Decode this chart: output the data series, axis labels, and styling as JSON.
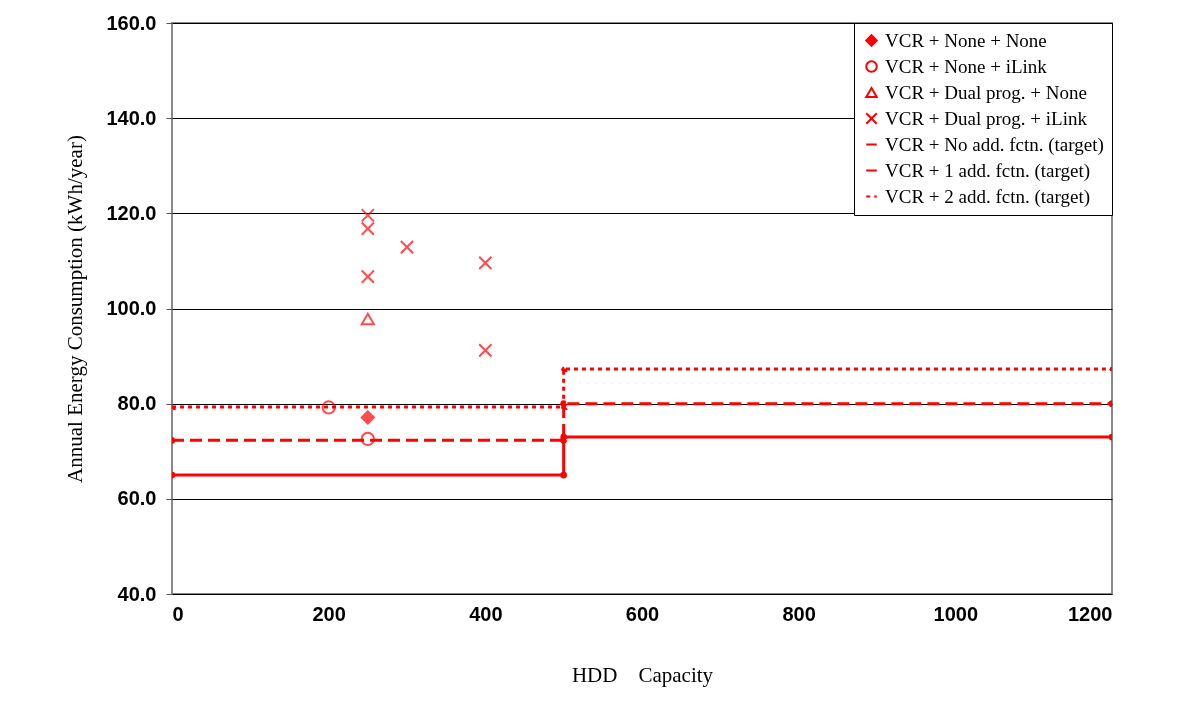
{
  "chart_data": {
    "type": "scatter",
    "xlabel": "HDD　Capacity",
    "ylabel": "Annual Energy Consumption (kWh/year)",
    "xlim": [
      0,
      1200
    ],
    "xticks": [
      0,
      200,
      400,
      600,
      800,
      1000,
      1200
    ],
    "ylim": [
      40,
      160
    ],
    "yticks": [
      {
        "value": 40,
        "label": "40.0"
      },
      {
        "value": 60,
        "label": "60.0"
      },
      {
        "value": 80,
        "label": "80.0"
      },
      {
        "value": 100,
        "label": "100.0"
      },
      {
        "value": 120,
        "label": "120.0"
      },
      {
        "value": 140,
        "label": "140.0"
      },
      {
        "value": 160,
        "label": "160.0"
      }
    ],
    "grid": "y",
    "legend": "top right",
    "series": [
      {
        "name": "VCR + None + None",
        "marker": "diamond",
        "color": "#ff0000",
        "x": [
          250
        ],
        "values": [
          77.1
        ]
      },
      {
        "name": "VCR + None + iLink",
        "marker": "circle",
        "color": "#ff0000",
        "x": [
          200,
          250
        ],
        "values": [
          79.2,
          72.6
        ]
      },
      {
        "name": "VCR + Dual prog. + None",
        "marker": "triangle",
        "color": "#ff0000",
        "x": [
          250
        ],
        "values": [
          97.8
        ]
      },
      {
        "name": "VCR + Dual prog. + iLink",
        "marker": "cross",
        "color": "#ff0000",
        "x": [
          250,
          250,
          250,
          300,
          400,
          400
        ],
        "values": [
          119.6,
          116.8,
          106.7,
          112.9,
          109.6,
          91.2
        ]
      },
      {
        "name": "VCR + No add. fctn. (target)",
        "type": "line",
        "marker": "circle",
        "line_style": "solid",
        "color": "#ff0000",
        "x": [
          0,
          500,
          500,
          1200
        ],
        "values": [
          65,
          65,
          73,
          73
        ]
      },
      {
        "name": "VCR + 1 add. fctn. (target)",
        "type": "line",
        "marker": "circle",
        "line_style": "dashed",
        "color": "#ff0000",
        "x": [
          0,
          500,
          500,
          1200
        ],
        "values": [
          72.3,
          72.3,
          80,
          80
        ]
      },
      {
        "name": "VCR + 2 add. fctn. (target)",
        "type": "line",
        "marker": "triangle",
        "line_style": "dotted",
        "color": "#ff0000",
        "x": [
          0,
          500,
          500,
          1200
        ],
        "values": [
          79.3,
          79.3,
          87.3,
          87.3
        ]
      }
    ]
  }
}
